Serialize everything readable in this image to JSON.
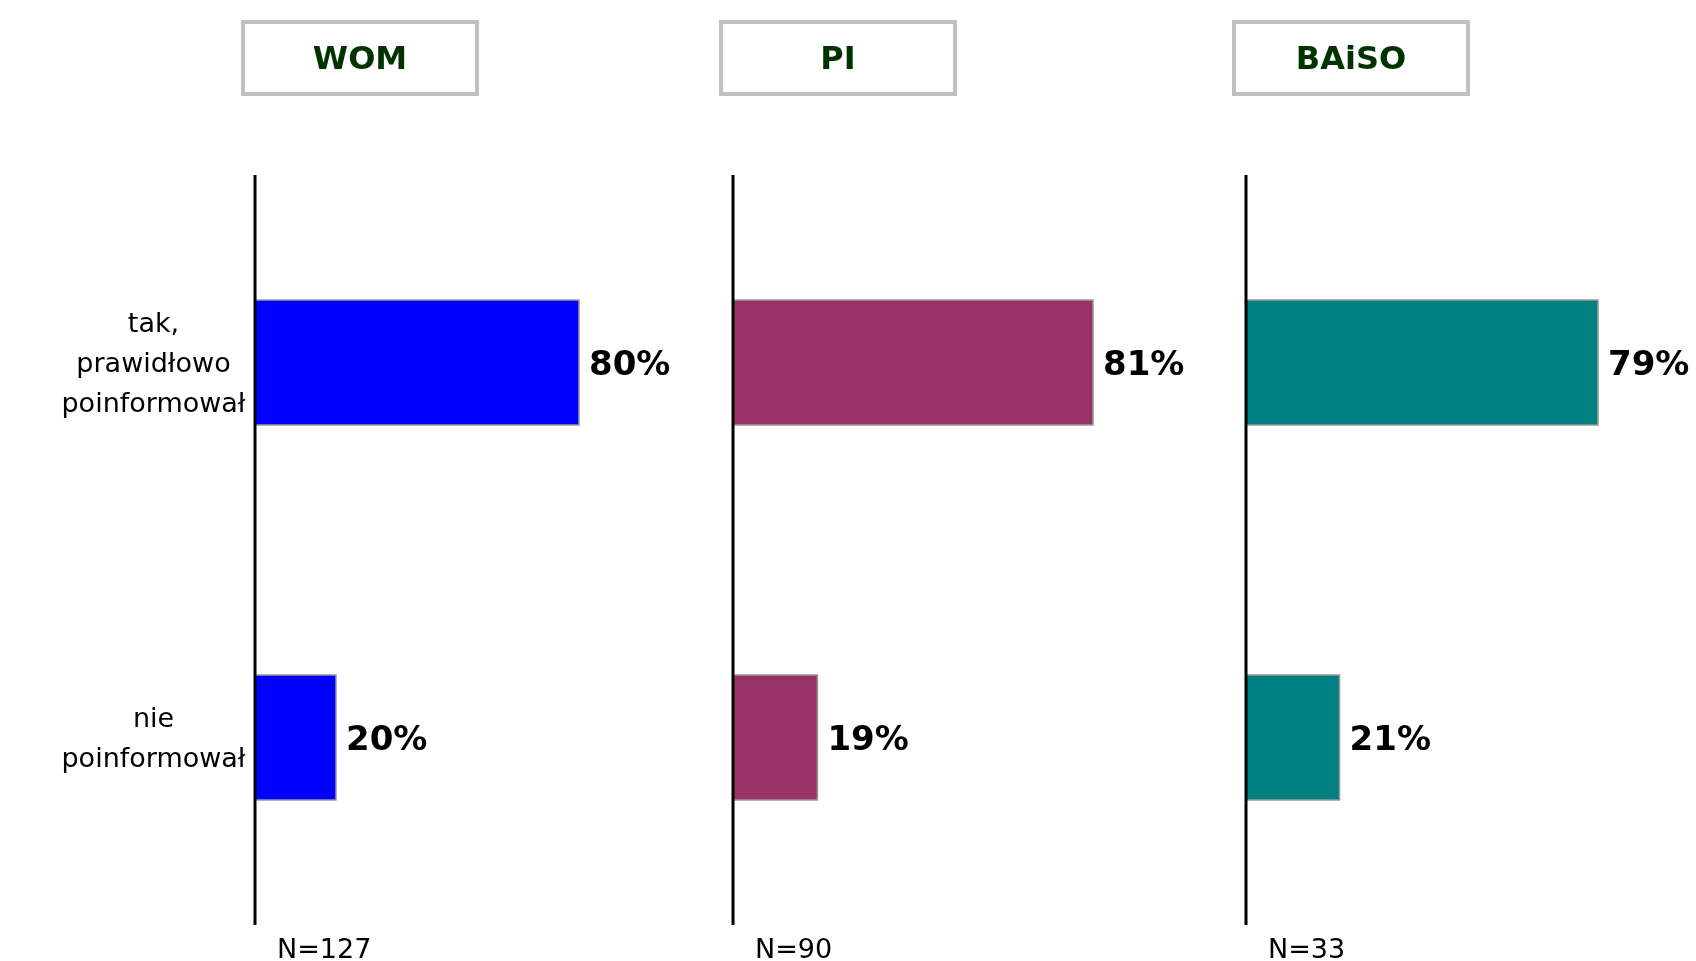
{
  "chart_data": [
    {
      "type": "bar",
      "orientation": "horizontal",
      "title": "WOM",
      "categories": [
        "tak, prawidłowo poinformował",
        "nie poinformował"
      ],
      "values": [
        80,
        20
      ],
      "color": "#0000ff",
      "value_labels": [
        "80%",
        "20%"
      ],
      "annotations": [
        "N=127"
      ],
      "tick_labels": "y"
    },
    {
      "type": "bar",
      "orientation": "horizontal",
      "title": "PI",
      "categories": [
        null,
        null
      ],
      "values": [
        81,
        19
      ],
      "color": "#993366",
      "value_labels": [
        "81%",
        "19%"
      ],
      "annotations": [
        "N=90"
      ],
      "tick_labels": false
    },
    {
      "type": "bar",
      "orientation": "horizontal",
      "title": "BAiSO",
      "categories": [
        null,
        null
      ],
      "values": [
        79,
        21
      ],
      "color": "#008080",
      "value_labels": [
        "79%",
        "21%"
      ],
      "annotations": [
        "N=33"
      ],
      "tick_labels": false
    }
  ]
}
